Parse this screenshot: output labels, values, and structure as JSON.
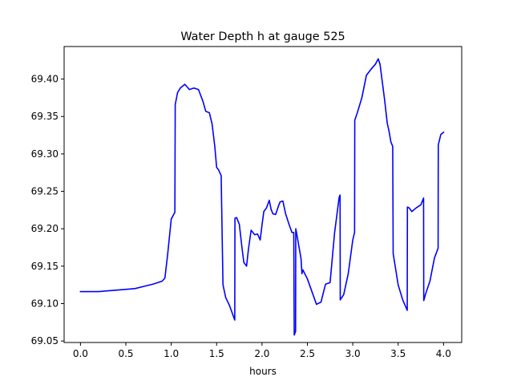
{
  "chart_data": {
    "type": "line",
    "title": "Water Depth h at gauge 525",
    "xlabel": "hours",
    "ylabel": "",
    "xlim": [
      -0.18,
      4.2
    ],
    "ylim": [
      69.048,
      69.4435
    ],
    "grid": false,
    "x_ticks": [
      0.0,
      0.5,
      1.0,
      1.5,
      2.0,
      2.5,
      3.0,
      3.5,
      4.0
    ],
    "x_tick_labels": [
      "0.0",
      "0.5",
      "1.0",
      "1.5",
      "2.0",
      "2.5",
      "3.0",
      "3.5",
      "4.0"
    ],
    "y_ticks": [
      69.05,
      69.1,
      69.15,
      69.2,
      69.25,
      69.3,
      69.35,
      69.4
    ],
    "y_tick_labels": [
      "69.05",
      "69.10",
      "69.15",
      "69.20",
      "69.25",
      "69.30",
      "69.35",
      "69.40"
    ],
    "series": [
      {
        "color": "#0000ff",
        "x": [
          0.0,
          0.2,
          0.4,
          0.6,
          0.7,
          0.8,
          0.9,
          0.93,
          0.96,
          1.0,
          1.04,
          1.044,
          1.07,
          1.1,
          1.15,
          1.2,
          1.25,
          1.3,
          1.35,
          1.38,
          1.42,
          1.45,
          1.48,
          1.5,
          1.52,
          1.55,
          1.57,
          1.572,
          1.6,
          1.64,
          1.7,
          1.702,
          1.72,
          1.75,
          1.78,
          1.8,
          1.83,
          1.85,
          1.88,
          1.92,
          1.95,
          1.98,
          2.0,
          2.02,
          2.05,
          2.08,
          2.1,
          2.12,
          2.15,
          2.18,
          2.2,
          2.23,
          2.26,
          2.3,
          2.33,
          2.35,
          2.355,
          2.37,
          2.372,
          2.38,
          2.4,
          2.43,
          2.44,
          2.45,
          2.5,
          2.55,
          2.6,
          2.65,
          2.7,
          2.75,
          2.8,
          2.85,
          2.86,
          2.862,
          2.9,
          2.95,
          3.0,
          3.02,
          3.022,
          3.05,
          3.1,
          3.15,
          3.2,
          3.25,
          3.28,
          3.3,
          3.35,
          3.38,
          3.4,
          3.42,
          3.44,
          3.445,
          3.5,
          3.55,
          3.6,
          3.602,
          3.62,
          3.65,
          3.7,
          3.75,
          3.78,
          3.782,
          3.8,
          3.85,
          3.9,
          3.94,
          3.942,
          3.97,
          4.0
        ],
        "y": [
          69.116,
          69.116,
          69.118,
          69.12,
          69.123,
          69.126,
          69.13,
          69.134,
          69.165,
          69.213,
          69.222,
          69.366,
          69.382,
          69.388,
          69.393,
          69.386,
          69.388,
          69.386,
          69.37,
          69.357,
          69.355,
          69.34,
          69.31,
          69.282,
          69.279,
          69.271,
          69.126,
          69.124,
          69.108,
          69.098,
          69.078,
          69.214,
          69.215,
          69.206,
          69.174,
          69.155,
          69.15,
          69.172,
          69.198,
          69.192,
          69.193,
          69.185,
          69.205,
          69.223,
          69.228,
          69.238,
          69.226,
          69.22,
          69.219,
          69.23,
          69.236,
          69.237,
          69.22,
          69.205,
          69.195,
          69.195,
          69.058,
          69.063,
          69.2,
          69.195,
          69.181,
          69.16,
          69.14,
          69.145,
          69.133,
          69.116,
          69.099,
          69.102,
          69.126,
          69.128,
          69.195,
          69.242,
          69.245,
          69.105,
          69.112,
          69.14,
          69.185,
          69.195,
          69.345,
          69.355,
          69.375,
          69.405,
          69.413,
          69.42,
          69.427,
          69.42,
          69.373,
          69.341,
          69.33,
          69.316,
          69.31,
          69.167,
          69.125,
          69.105,
          69.091,
          69.229,
          69.228,
          69.223,
          69.228,
          69.232,
          69.241,
          69.104,
          69.112,
          69.13,
          69.161,
          69.174,
          69.312,
          69.326,
          69.329
        ]
      }
    ]
  }
}
